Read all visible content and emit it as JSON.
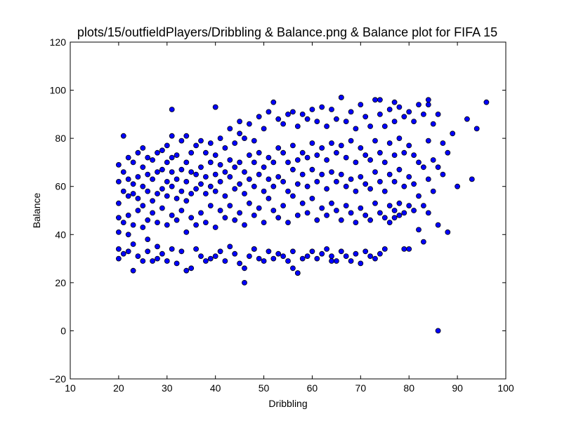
{
  "chart_data": {
    "type": "scatter",
    "title": "plots/15/outfieldPlayers/Dribbling & Balance.png & Balance plot for FIFA 15",
    "xlabel": "Dribbling",
    "ylabel": "Balance",
    "xlim": [
      10,
      100
    ],
    "ylim": [
      -20,
      120
    ],
    "xticks": [
      10,
      20,
      30,
      40,
      50,
      60,
      70,
      80,
      90,
      100
    ],
    "yticks": [
      -20,
      0,
      20,
      40,
      60,
      80,
      100,
      120
    ],
    "xtick_labels": [
      "10",
      "20",
      "30",
      "40",
      "50",
      "60",
      "70",
      "80",
      "90",
      "100"
    ],
    "ytick_labels": [
      "−20",
      "0",
      "20",
      "40",
      "60",
      "80",
      "100",
      "120"
    ],
    "grid": false,
    "legend": "none",
    "marker_color": "#0000ff",
    "marker_edge": "#000000",
    "series": [
      {
        "x": [
          20,
          20,
          20,
          20,
          20,
          20,
          20,
          21,
          21,
          21,
          21,
          21,
          22,
          22,
          22,
          22,
          22,
          22,
          23,
          23,
          23,
          23,
          23,
          23,
          24,
          24,
          24,
          24,
          24,
          25,
          25,
          25,
          25,
          25,
          25,
          26,
          26,
          26,
          26,
          26,
          26,
          27,
          27,
          27,
          27,
          27,
          28,
          28,
          28,
          28,
          28,
          28,
          29,
          29,
          29,
          29,
          29,
          30,
          30,
          30,
          30,
          30,
          30,
          31,
          31,
          31,
          31,
          31,
          31,
          32,
          32,
          32,
          32,
          32,
          33,
          33,
          33,
          33,
          33,
          34,
          34,
          34,
          34,
          34,
          34,
          35,
          35,
          35,
          35,
          35,
          36,
          36,
          36,
          36,
          36,
          37,
          37,
          37,
          37,
          37,
          38,
          38,
          38,
          38,
          38,
          39,
          39,
          39,
          39,
          39,
          40,
          40,
          40,
          40,
          40,
          40,
          41,
          41,
          41,
          41,
          41,
          42,
          42,
          42,
          42,
          42,
          43,
          43,
          43,
          43,
          43,
          44,
          44,
          44,
          44,
          44,
          45,
          45,
          45,
          45,
          45,
          45,
          46,
          46,
          46,
          46,
          46,
          47,
          47,
          47,
          47,
          47,
          48,
          48,
          48,
          48,
          48,
          49,
          49,
          49,
          49,
          49,
          50,
          50,
          50,
          50,
          50,
          51,
          51,
          51,
          51,
          51,
          52,
          52,
          52,
          52,
          52,
          53,
          53,
          53,
          53,
          53,
          54,
          54,
          54,
          54,
          54,
          55,
          55,
          55,
          55,
          55,
          56,
          56,
          56,
          56,
          56,
          56,
          57,
          57,
          57,
          57,
          57,
          58,
          58,
          58,
          58,
          58,
          59,
          59,
          59,
          59,
          59,
          60,
          60,
          60,
          60,
          60,
          61,
          61,
          61,
          61,
          61,
          62,
          62,
          62,
          62,
          62,
          63,
          63,
          63,
          63,
          63,
          64,
          64,
          64,
          64,
          64,
          65,
          65,
          65,
          65,
          65,
          66,
          66,
          66,
          66,
          66,
          67,
          67,
          67,
          67,
          67,
          68,
          68,
          68,
          68,
          68,
          69,
          69,
          69,
          69,
          69,
          70,
          70,
          70,
          70,
          70,
          71,
          71,
          71,
          71,
          71,
          72,
          72,
          72,
          72,
          72,
          73,
          73,
          73,
          73,
          73,
          74,
          74,
          74,
          74,
          74,
          75,
          75,
          75,
          75,
          75,
          76,
          76,
          76,
          76,
          76,
          77,
          77,
          77,
          77,
          77,
          78,
          78,
          78,
          78,
          78,
          79,
          79,
          79,
          79,
          79,
          80,
          80,
          80,
          80,
          80,
          81,
          81,
          81,
          81,
          82,
          82,
          82,
          82,
          83,
          83,
          83,
          83,
          84,
          84,
          84,
          84,
          85,
          85,
          85,
          86,
          86,
          86,
          87,
          87,
          88,
          88,
          89,
          90,
          92,
          93,
          94,
          96,
          31,
          40,
          46,
          86,
          57,
          48,
          64,
          66,
          74,
          77,
          84
        ],
        "y": [
          30,
          41,
          53,
          62,
          69,
          34,
          47,
          32,
          45,
          58,
          66,
          81,
          33,
          48,
          56,
          63,
          72,
          40,
          25,
          44,
          57,
          61,
          70,
          36,
          31,
          50,
          55,
          64,
          74,
          29,
          43,
          52,
          60,
          68,
          76,
          33,
          46,
          58,
          65,
          72,
          38,
          29,
          49,
          54,
          63,
          71,
          35,
          45,
          57,
          66,
          74,
          30,
          32,
          51,
          59,
          67,
          75,
          29,
          44,
          56,
          62,
          70,
          77,
          34,
          48,
          60,
          66,
          72,
          81,
          28,
          46,
          55,
          63,
          73,
          33,
          50,
          58,
          67,
          79,
          25,
          41,
          54,
          62,
          70,
          81,
          26,
          47,
          57,
          66,
          74,
          34,
          44,
          59,
          65,
          77,
          31,
          49,
          61,
          68,
          79,
          29,
          45,
          57,
          64,
          74,
          30,
          52,
          60,
          70,
          78,
          31,
          43,
          58,
          65,
          73,
          93,
          33,
          50,
          62,
          69,
          80,
          29,
          47,
          56,
          66,
          76,
          35,
          52,
          64,
          71,
          84,
          32,
          46,
          59,
          68,
          78,
          28,
          49,
          61,
          70,
          82,
          87,
          20,
          44,
          57,
          66,
          80,
          31,
          53,
          63,
          73,
          86,
          34,
          48,
          60,
          70,
          79,
          30,
          51,
          65,
          74,
          89,
          29,
          45,
          58,
          68,
          84,
          33,
          55,
          63,
          72,
          91,
          30,
          50,
          60,
          70,
          95,
          32,
          47,
          64,
          76,
          88,
          31,
          52,
          62,
          74,
          86,
          29,
          45,
          58,
          70,
          90,
          33,
          56,
          67,
          77,
          91,
          26,
          24,
          48,
          61,
          71,
          85,
          30,
          53,
          65,
          74,
          90,
          31,
          49,
          60,
          72,
          88,
          33,
          55,
          67,
          78,
          92,
          30,
          46,
          62,
          73,
          87,
          32,
          51,
          65,
          76,
          93,
          34,
          48,
          59,
          71,
          85,
          31,
          53,
          66,
          78,
          92,
          29,
          50,
          62,
          74,
          88,
          33,
          46,
          65,
          77,
          97,
          31,
          52,
          60,
          72,
          87,
          29,
          49,
          63,
          79,
          91,
          32,
          45,
          58,
          70,
          84,
          28,
          51,
          64,
          76,
          94,
          33,
          48,
          61,
          73,
          89,
          31,
          46,
          59,
          71,
          85,
          30,
          53,
          66,
          79,
          96,
          32,
          49,
          62,
          74,
          90,
          34,
          47,
          58,
          70,
          85,
          45,
          52,
          65,
          78,
          92,
          47,
          50,
          62,
          73,
          87,
          48,
          53,
          67,
          80,
          93,
          34,
          49,
          60,
          74,
          89,
          34,
          52,
          64,
          77,
          91,
          50,
          61,
          73,
          87,
          42,
          56,
          70,
          94,
          37,
          52,
          68,
          90,
          49,
          63,
          79,
          96,
          58,
          71,
          86,
          44,
          68,
          90,
          65,
          78,
          41,
          74,
          82,
          60,
          88,
          63,
          84,
          95,
          92,
          93,
          26,
          0,
          24,
          34,
          29,
          97,
          96,
          95,
          94
        ]
      }
    ]
  }
}
